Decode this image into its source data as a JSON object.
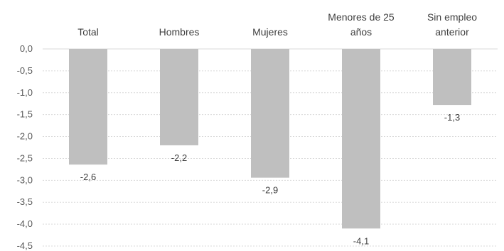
{
  "chart_data": {
    "type": "bar",
    "categories": [
      [
        "Total"
      ],
      [
        "Hombres"
      ],
      [
        "Mujeres"
      ],
      [
        "Menores de 25",
        "años"
      ],
      [
        "Sin empleo",
        "anterior"
      ]
    ],
    "values": [
      -2.64,
      -2.2,
      -2.94,
      -4.1,
      -1.28
    ],
    "data_labels": [
      "-2,6",
      "-2,2",
      "-2,9",
      "-4,1",
      "-1,3"
    ],
    "ylim": [
      -4.5,
      0.0
    ],
    "yticks": [
      0.0,
      -0.5,
      -1.0,
      -1.5,
      -2.0,
      -2.5,
      -3.0,
      -3.5,
      -4.0,
      -4.5
    ],
    "ytick_labels": [
      "0,0",
      "-0,5",
      "-1,0",
      "-1,5",
      "-2,0",
      "-2,5",
      "-3,0",
      "-3,5",
      "-4,0",
      "-4,5"
    ],
    "grid": true,
    "bar_color": "#bfbfbf",
    "title": "",
    "xlabel": "",
    "ylabel": ""
  }
}
